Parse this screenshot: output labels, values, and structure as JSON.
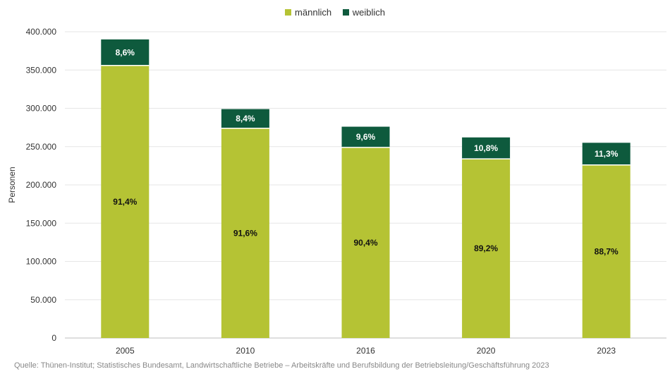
{
  "chart_data": {
    "type": "bar",
    "stacked": true,
    "categories": [
      "2005",
      "2010",
      "2016",
      "2020",
      "2023"
    ],
    "series": [
      {
        "name": "männlich",
        "color": "#b5c334",
        "values": [
          356000,
          274000,
          249000,
          234000,
          226000
        ],
        "labels": [
          "91,4%",
          "91,6%",
          "90,4%",
          "89,2%",
          "88,7%"
        ]
      },
      {
        "name": "weiblich",
        "color": "#0e5a3d",
        "values": [
          34000,
          25000,
          27000,
          28000,
          29000
        ],
        "labels": [
          "8,6%",
          "8,4%",
          "9,6%",
          "10,8%",
          "11,3%"
        ]
      }
    ],
    "ylabel": "Personen",
    "ylim": [
      0,
      400000
    ],
    "yticks": [
      0,
      50000,
      100000,
      150000,
      200000,
      250000,
      300000,
      350000,
      400000
    ],
    "ytick_labels": [
      "0",
      "50.000",
      "100.000",
      "150.000",
      "200.000",
      "250.000",
      "300.000",
      "350.000",
      "400.000"
    ],
    "grid": true,
    "legend_position": "top-center"
  },
  "source": "Quelle: Thünen-Institut; Statistisches Bundesamt, Landwirtschaftliche Betriebe – Arbeitskräfte und Berufsbildung der Betriebsleitung/Geschäftsführung 2023"
}
